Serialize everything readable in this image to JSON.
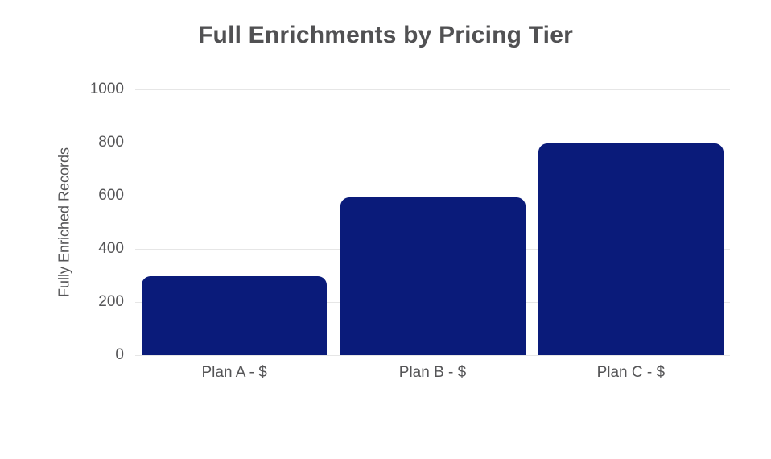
{
  "chart_data": {
    "type": "bar",
    "title": "Full Enrichments by Pricing Tier",
    "xlabel": "",
    "ylabel": "Fully Enriched Records",
    "categories": [
      "Plan A - $",
      "Plan B - $",
      "Plan C - $"
    ],
    "values": [
      297,
      595,
      797
    ],
    "ylim": [
      0,
      1000
    ],
    "yticks": [
      0,
      200,
      400,
      600,
      800,
      1000
    ],
    "grid": "horizontal-only",
    "legend": "none",
    "colors": {
      "bar": "#0a1b7a",
      "title_text": "#515153",
      "axis_text": "#555557",
      "gridline": "#e6e6e6",
      "background": "#ffffff"
    }
  }
}
